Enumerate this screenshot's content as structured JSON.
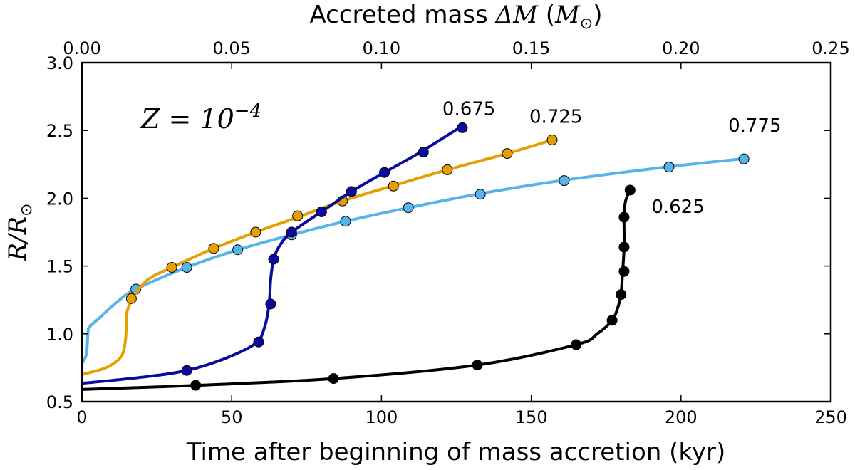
{
  "chart_data": {
    "type": "line",
    "xlabel": "Time after beginning of mass accretion (kyr)",
    "xlabel_top": {
      "prefix": "Accreted mass ",
      "math": "ΔM",
      "open": " (",
      "unit": "M",
      "unit_sub": "⊙",
      "close": ")"
    },
    "ylabel": {
      "math": "R/R",
      "sub": "⊙"
    },
    "xlim": [
      0,
      250
    ],
    "ylim": [
      0.5,
      3.0
    ],
    "xlim_top": [
      0.0,
      0.25
    ],
    "x_ticks": [
      "0",
      "50",
      "100",
      "150",
      "200",
      "250"
    ],
    "x_ticks_top": [
      "0.00",
      "0.05",
      "0.10",
      "0.15",
      "0.20",
      "0.25"
    ],
    "y_ticks": [
      "0.5",
      "1.0",
      "1.5",
      "2.0",
      "2.5",
      "3.0"
    ],
    "annotation": {
      "base": "Z = 10",
      "exp": "−4"
    },
    "series": [
      {
        "name": "0.775",
        "color": "#56b4e9",
        "curve": [
          [
            0.0,
            0.78
          ],
          [
            1.5,
            0.85
          ],
          [
            2.0,
            1.0
          ],
          [
            2.5,
            1.05
          ],
          [
            6,
            1.12
          ],
          [
            12,
            1.24
          ],
          [
            18,
            1.33
          ],
          [
            35,
            1.49
          ],
          [
            52,
            1.62
          ],
          [
            70,
            1.73
          ],
          [
            88,
            1.83
          ],
          [
            109,
            1.93
          ],
          [
            132,
            2.03
          ],
          [
            160,
            2.13
          ],
          [
            195,
            2.23
          ],
          [
            220,
            2.29
          ]
        ],
        "markers": [
          [
            18,
            1.33
          ],
          [
            35,
            1.49
          ],
          [
            52,
            1.62
          ],
          [
            70,
            1.73
          ],
          [
            88,
            1.83
          ],
          [
            109,
            1.93
          ],
          [
            133,
            2.03
          ],
          [
            161,
            2.13
          ],
          [
            196,
            2.23
          ],
          [
            221,
            2.29
          ]
        ]
      },
      {
        "name": "0.725",
        "color": "#e69f00",
        "curve": [
          [
            0,
            0.7
          ],
          [
            8,
            0.75
          ],
          [
            13,
            0.83
          ],
          [
            14.5,
            0.95
          ],
          [
            15,
            1.15
          ],
          [
            16,
            1.22
          ],
          [
            17,
            1.27
          ],
          [
            22,
            1.4
          ],
          [
            30,
            1.49
          ],
          [
            44,
            1.63
          ],
          [
            58,
            1.75
          ],
          [
            72,
            1.86
          ],
          [
            87,
            1.98
          ],
          [
            105,
            2.1
          ],
          [
            122,
            2.21
          ],
          [
            142,
            2.33
          ],
          [
            157,
            2.43
          ]
        ],
        "markers": [
          [
            16.5,
            1.26
          ],
          [
            30,
            1.49
          ],
          [
            44,
            1.63
          ],
          [
            58,
            1.75
          ],
          [
            72,
            1.87
          ],
          [
            87,
            1.98
          ],
          [
            104,
            2.09
          ],
          [
            122,
            2.21
          ],
          [
            142,
            2.33
          ],
          [
            157,
            2.43
          ]
        ]
      },
      {
        "name": "0.675",
        "color": "#0a0aa0",
        "curve": [
          [
            0,
            0.635
          ],
          [
            20,
            0.68
          ],
          [
            35,
            0.73
          ],
          [
            48,
            0.82
          ],
          [
            58,
            0.93
          ],
          [
            61,
            1.05
          ],
          [
            62.5,
            1.22
          ],
          [
            63,
            1.4
          ],
          [
            64,
            1.55
          ],
          [
            66,
            1.65
          ],
          [
            70,
            1.75
          ],
          [
            80,
            1.9
          ],
          [
            90,
            2.05
          ],
          [
            101,
            2.19
          ],
          [
            113,
            2.34
          ],
          [
            126,
            2.52
          ]
        ],
        "markers": [
          [
            35,
            0.73
          ],
          [
            59,
            0.94
          ],
          [
            63,
            1.22
          ],
          [
            64,
            1.55
          ],
          [
            70,
            1.75
          ],
          [
            80,
            1.9
          ],
          [
            90,
            2.05
          ],
          [
            101,
            2.19
          ],
          [
            114,
            2.34
          ],
          [
            127,
            2.52
          ]
        ]
      },
      {
        "name": "0.625",
        "color": "#000000",
        "curve": [
          [
            0,
            0.59
          ],
          [
            38,
            0.62
          ],
          [
            84,
            0.67
          ],
          [
            132,
            0.77
          ],
          [
            165,
            0.92
          ],
          [
            172,
            1.0
          ],
          [
            177,
            1.1
          ],
          [
            179,
            1.2
          ],
          [
            180,
            1.3
          ],
          [
            180.5,
            1.45
          ],
          [
            181,
            1.64
          ],
          [
            181,
            1.86
          ],
          [
            181.5,
            1.98
          ],
          [
            183,
            2.06
          ]
        ],
        "markers": [
          [
            38,
            0.62
          ],
          [
            84,
            0.67
          ],
          [
            132,
            0.77
          ],
          [
            165,
            0.92
          ],
          [
            177,
            1.1
          ],
          [
            180,
            1.29
          ],
          [
            181,
            1.46
          ],
          [
            181,
            1.64
          ],
          [
            181,
            1.86
          ],
          [
            183,
            2.06
          ]
        ]
      }
    ]
  }
}
